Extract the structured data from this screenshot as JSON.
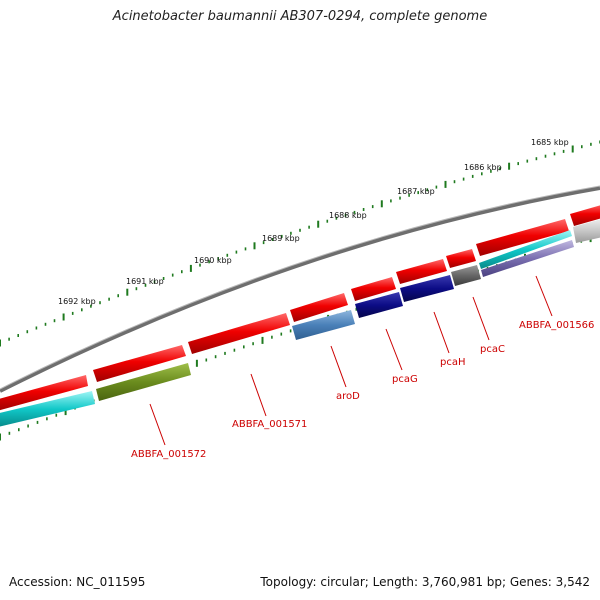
{
  "title": "Acinetobacter baumannii AB307-0294, complete genome",
  "accession": "Accession: NC_011595",
  "summary": "Topology: circular; Length: 3,760,981 bp; Genes: 3,542",
  "scale_labels": [
    "1685 kbp",
    "1686 kbp",
    "1687 kbp",
    "1688 kbp",
    "1689 kbp",
    "1690 kbp",
    "1691 kbp",
    "1692 kbp"
  ],
  "gene_labels": [
    "ABBFA_001566",
    "pcaC",
    "pcaH",
    "pcaG",
    "aroD",
    "ABBFA_001571",
    "ABBFA_001572"
  ],
  "colors": {
    "gene_red": "#ee1111",
    "tick_green": "#1f7a1f",
    "backbone_gray": "#7a7a7a",
    "label_red": "#cc0000"
  }
}
